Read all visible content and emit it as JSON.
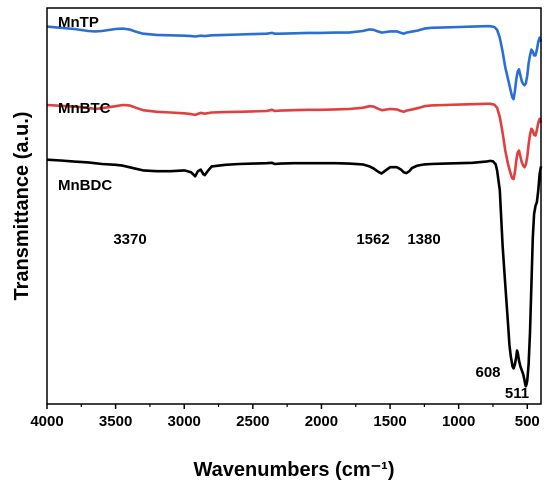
{
  "chart_data": {
    "type": "line",
    "xlabel": "Wavenumbers (cm⁻¹)",
    "ylabel": "Transmittance (a.u.)",
    "xlim": [
      4000,
      400
    ],
    "x_ticks": [
      "4000",
      "3500",
      "3000",
      "2500",
      "2000",
      "1500",
      "1000",
      "500"
    ],
    "x_tick_values": [
      4000,
      3500,
      3000,
      2500,
      2000,
      1500,
      1000,
      500
    ],
    "y_ticks_shown": false,
    "ylim": [
      0,
      1
    ],
    "grid": false,
    "legend": "none",
    "series": [
      {
        "name": "MnTP",
        "color": "#2a6fd6",
        "x": [
          4000,
          3900,
          3800,
          3700,
          3650,
          3600,
          3500,
          3450,
          3400,
          3350,
          3300,
          3200,
          3100,
          3000,
          2950,
          2920,
          2880,
          2850,
          2800,
          2700,
          2600,
          2500,
          2400,
          2360,
          2340,
          2300,
          2200,
          2100,
          2000,
          1900,
          1800,
          1700,
          1650,
          1620,
          1590,
          1560,
          1500,
          1450,
          1420,
          1400,
          1380,
          1350,
          1300,
          1250,
          1200,
          1100,
          1000,
          900,
          800,
          770,
          740,
          720,
          700,
          680,
          660,
          640,
          620,
          610,
          600,
          590,
          580,
          570,
          560,
          550,
          540,
          530,
          520,
          510,
          500,
          490,
          480,
          470,
          460,
          450,
          440,
          430,
          420,
          410,
          400
        ],
        "values": [
          0.953,
          0.95,
          0.947,
          0.942,
          0.941,
          0.942,
          0.947,
          0.948,
          0.946,
          0.94,
          0.935,
          0.932,
          0.931,
          0.93,
          0.929,
          0.928,
          0.93,
          0.929,
          0.931,
          0.932,
          0.933,
          0.934,
          0.935,
          0.937,
          0.935,
          0.935,
          0.936,
          0.937,
          0.937,
          0.938,
          0.938,
          0.942,
          0.946,
          0.945,
          0.941,
          0.938,
          0.941,
          0.941,
          0.937,
          0.935,
          0.938,
          0.94,
          0.943,
          0.948,
          0.95,
          0.951,
          0.952,
          0.953,
          0.954,
          0.954,
          0.952,
          0.945,
          0.925,
          0.89,
          0.85,
          0.82,
          0.79,
          0.775,
          0.77,
          0.79,
          0.82,
          0.84,
          0.845,
          0.83,
          0.815,
          0.808,
          0.805,
          0.81,
          0.83,
          0.86,
          0.88,
          0.895,
          0.89,
          0.88,
          0.88,
          0.895,
          0.915,
          0.925,
          0.915
        ]
      },
      {
        "name": "MnBTC",
        "color": "#e04040",
        "x": [
          4000,
          3900,
          3800,
          3700,
          3650,
          3600,
          3500,
          3450,
          3400,
          3350,
          3300,
          3200,
          3100,
          3000,
          2950,
          2920,
          2880,
          2850,
          2800,
          2700,
          2600,
          2500,
          2400,
          2360,
          2340,
          2300,
          2200,
          2100,
          2000,
          1900,
          1800,
          1700,
          1650,
          1620,
          1590,
          1560,
          1500,
          1450,
          1420,
          1400,
          1380,
          1350,
          1300,
          1250,
          1200,
          1100,
          1000,
          900,
          800,
          770,
          740,
          720,
          700,
          680,
          660,
          640,
          620,
          610,
          600,
          590,
          580,
          570,
          560,
          550,
          540,
          530,
          520,
          510,
          500,
          490,
          480,
          470,
          460,
          450,
          440,
          430,
          420,
          410,
          400
        ],
        "values": [
          0.755,
          0.753,
          0.751,
          0.748,
          0.745,
          0.747,
          0.752,
          0.755,
          0.754,
          0.748,
          0.742,
          0.738,
          0.736,
          0.734,
          0.732,
          0.73,
          0.735,
          0.733,
          0.736,
          0.737,
          0.738,
          0.739,
          0.74,
          0.743,
          0.74,
          0.741,
          0.742,
          0.743,
          0.743,
          0.744,
          0.745,
          0.748,
          0.752,
          0.751,
          0.746,
          0.742,
          0.745,
          0.744,
          0.74,
          0.738,
          0.741,
          0.743,
          0.747,
          0.752,
          0.754,
          0.755,
          0.756,
          0.757,
          0.758,
          0.758,
          0.756,
          0.748,
          0.725,
          0.685,
          0.64,
          0.605,
          0.58,
          0.57,
          0.568,
          0.585,
          0.615,
          0.635,
          0.64,
          0.625,
          0.61,
          0.602,
          0.598,
          0.605,
          0.625,
          0.655,
          0.68,
          0.695,
          0.69,
          0.68,
          0.678,
          0.692,
          0.71,
          0.72,
          0.71
        ]
      },
      {
        "name": "MnBDC",
        "color": "#000000",
        "x": [
          4000,
          3900,
          3800,
          3700,
          3650,
          3600,
          3500,
          3450,
          3400,
          3350,
          3300,
          3200,
          3100,
          3000,
          2950,
          2920,
          2900,
          2880,
          2860,
          2850,
          2830,
          2800,
          2700,
          2600,
          2500,
          2400,
          2360,
          2340,
          2300,
          2200,
          2100,
          2000,
          1900,
          1800,
          1700,
          1650,
          1620,
          1600,
          1580,
          1562,
          1540,
          1500,
          1450,
          1420,
          1400,
          1380,
          1360,
          1340,
          1300,
          1250,
          1200,
          1100,
          1000,
          900,
          800,
          770,
          750,
          730,
          720,
          700,
          690,
          680,
          660,
          640,
          630,
          620,
          610,
          608,
          600,
          590,
          580,
          575,
          570,
          560,
          550,
          540,
          530,
          520,
          515,
          511,
          505,
          500,
          490,
          480,
          470,
          460,
          450,
          440,
          430,
          420,
          410,
          400
        ],
        "values": [
          0.617,
          0.615,
          0.612,
          0.61,
          0.608,
          0.606,
          0.604,
          0.602,
          0.598,
          0.594,
          0.59,
          0.588,
          0.588,
          0.59,
          0.585,
          0.575,
          0.588,
          0.592,
          0.58,
          0.578,
          0.588,
          0.6,
          0.604,
          0.606,
          0.607,
          0.608,
          0.609,
          0.606,
          0.607,
          0.608,
          0.608,
          0.608,
          0.608,
          0.607,
          0.605,
          0.6,
          0.595,
          0.59,
          0.585,
          0.582,
          0.588,
          0.598,
          0.598,
          0.592,
          0.585,
          0.583,
          0.588,
          0.596,
          0.602,
          0.605,
          0.606,
          0.607,
          0.608,
          0.609,
          0.612,
          0.614,
          0.613,
          0.605,
          0.59,
          0.54,
          0.47,
          0.4,
          0.3,
          0.2,
          0.15,
          0.12,
          0.1,
          0.095,
          0.09,
          0.1,
          0.12,
          0.135,
          0.13,
          0.11,
          0.095,
          0.085,
          0.075,
          0.06,
          0.05,
          0.045,
          0.05,
          0.06,
          0.1,
          0.18,
          0.3,
          0.42,
          0.48,
          0.5,
          0.51,
          0.54,
          0.58,
          0.6
        ]
      }
    ],
    "annotations": [
      "3370",
      "1562",
      "1380",
      "608",
      "511"
    ]
  }
}
